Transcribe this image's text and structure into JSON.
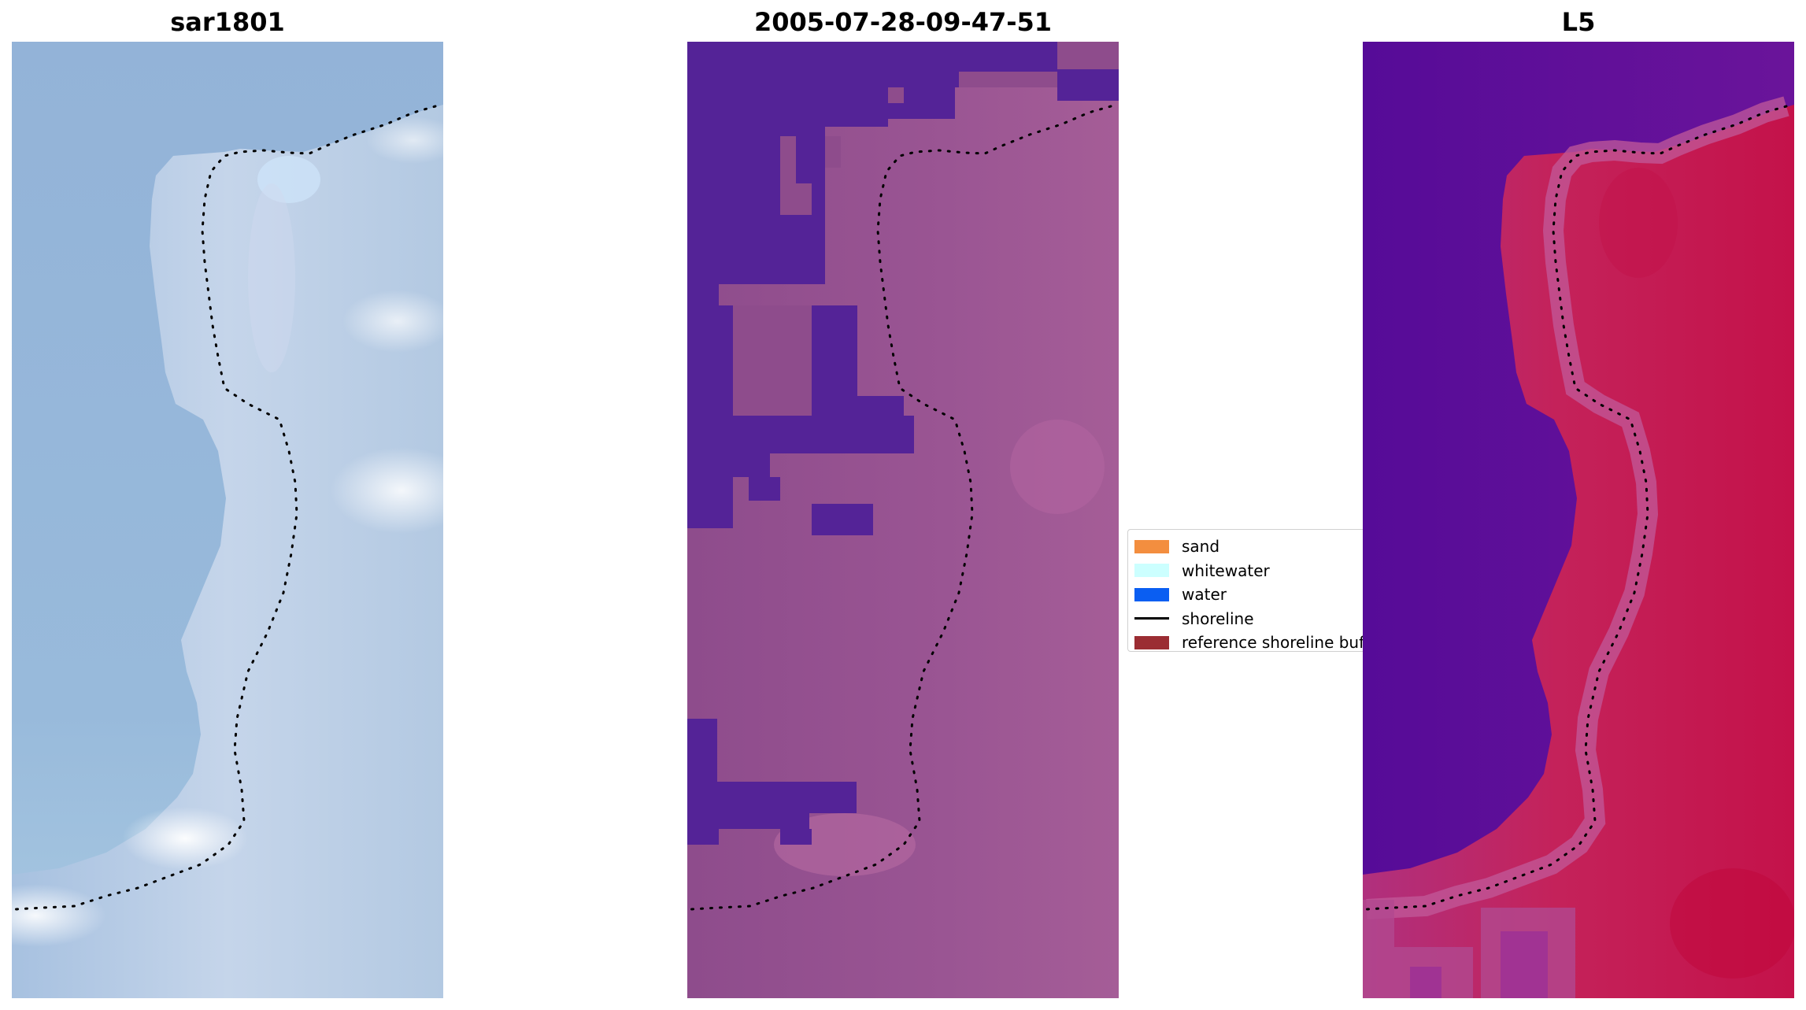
{
  "panels": {
    "left": {
      "title": "sar1801"
    },
    "middle": {
      "title": "2005-07-28-09-47-51"
    },
    "right": {
      "title": "L5"
    }
  },
  "legend": {
    "items": [
      {
        "label": "sand",
        "color": "#f38e3f",
        "kind": "patch"
      },
      {
        "label": "whitewater",
        "color": "#ccffff",
        "kind": "patch"
      },
      {
        "label": "water",
        "color": "#0a5ef2",
        "kind": "patch"
      },
      {
        "label": "shoreline",
        "color": "#000000",
        "kind": "line"
      },
      {
        "label": "reference shoreline buffer",
        "color": "#9b2d33",
        "kind": "patch"
      }
    ]
  },
  "colors": {
    "left_base": "#93b3d8",
    "middle_water": "#542397",
    "middle_land": "#8e4c8c",
    "right_water": "#5d1099",
    "right_land": "#c81848",
    "shoreline": "#000000"
  }
}
